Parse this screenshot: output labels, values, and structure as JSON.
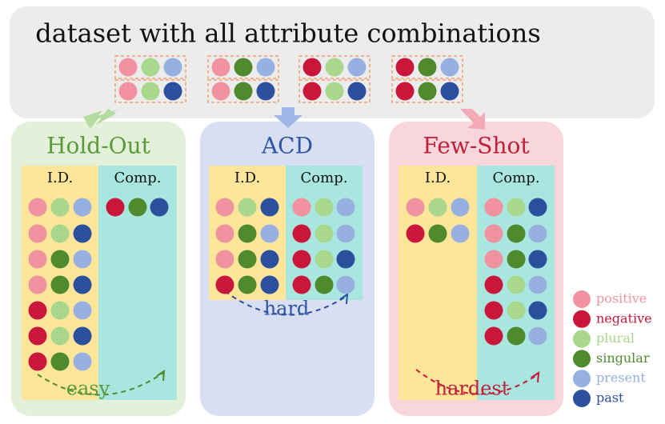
{
  "header": {
    "title": "dataset with all attribute combinations"
  },
  "panels": [
    {
      "title": "Hold-Out",
      "color": "#5a9a3a",
      "columns": [
        "I.D.",
        "Comp."
      ],
      "annotation": "easy"
    },
    {
      "title": "ACD",
      "color": "#2f55a4",
      "columns": [
        "I.D.",
        "Comp."
      ],
      "annotation": "hard"
    },
    {
      "title": "Few-Shot",
      "color": "#c0203a",
      "columns": [
        "I.D.",
        "Comp."
      ],
      "annotation": "hardest"
    }
  ],
  "legend": [
    {
      "label": "positive",
      "color": "#f0929f"
    },
    {
      "label": "negative",
      "color": "#c8173a"
    },
    {
      "label": "plural",
      "color": "#a9d78b"
    },
    {
      "label": "singular",
      "color": "#4f8b2e"
    },
    {
      "label": "present",
      "color": "#97b0e2"
    },
    {
      "label": "past",
      "color": "#2c4f9e"
    }
  ]
}
